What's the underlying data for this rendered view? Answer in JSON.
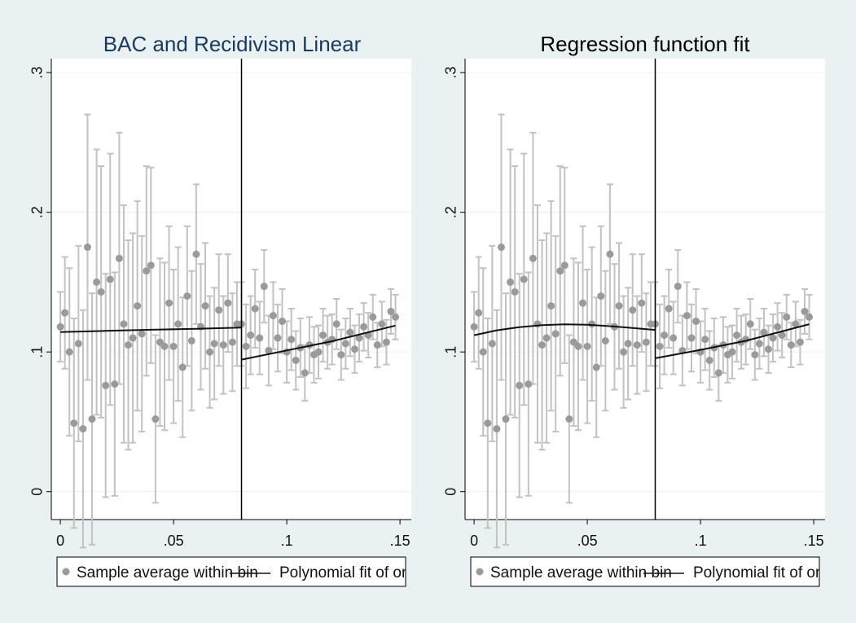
{
  "chart_data": [
    {
      "type": "scatter",
      "title": "BAC and Recidivism Linear",
      "title_color": "#1a3a5f",
      "xlabel": "",
      "ylabel": "",
      "xlim": [
        -0.004,
        0.155
      ],
      "ylim": [
        -0.02,
        0.31
      ],
      "x_ticks": [
        0,
        0.05,
        0.1,
        0.15
      ],
      "x_tick_labels": [
        "0",
        ".05",
        ".1",
        ".15"
      ],
      "y_ticks": [
        0,
        0.1,
        0.2,
        0.3
      ],
      "y_tick_labels": [
        "0",
        ".1",
        ".2",
        ".3"
      ],
      "grid": "horizontal",
      "cutoff": 0.08,
      "legend": {
        "placement": "bottom",
        "entries": [
          "Sample average within bin",
          "Polynomial fit of orde"
        ]
      },
      "fit_left": {
        "x": [
          0,
          0.02,
          0.04,
          0.06,
          0.08
        ],
        "y": [
          0.1143,
          0.1151,
          0.1159,
          0.1166,
          0.1174
        ]
      },
      "fit_right": {
        "x": [
          0.08,
          0.1,
          0.12,
          0.148
        ],
        "y": [
          0.0945,
          0.1011,
          0.1077,
          0.1189
        ]
      },
      "series": [
        {
          "x": [
            0.0,
            0.002,
            0.004,
            0.006,
            0.008,
            0.01,
            0.012,
            0.014,
            0.016,
            0.018,
            0.02,
            0.022,
            0.024,
            0.026,
            0.028,
            0.03,
            0.032,
            0.034,
            0.036,
            0.038,
            0.04,
            0.042,
            0.044,
            0.046,
            0.048,
            0.05,
            0.052,
            0.054,
            0.056,
            0.058,
            0.06,
            0.062,
            0.064,
            0.066,
            0.068,
            0.07,
            0.072,
            0.074,
            0.076,
            0.078,
            0.08,
            0.082,
            0.084,
            0.086,
            0.088,
            0.09,
            0.092,
            0.094,
            0.096,
            0.098,
            0.1,
            0.102,
            0.104,
            0.106,
            0.108,
            0.11,
            0.112,
            0.114,
            0.116,
            0.118,
            0.12,
            0.122,
            0.124,
            0.126,
            0.128,
            0.13,
            0.132,
            0.134,
            0.136,
            0.138,
            0.14,
            0.142,
            0.144,
            0.146,
            0.148
          ],
          "y": [
            0.118,
            0.128,
            0.1,
            0.049,
            0.106,
            0.045,
            0.175,
            0.052,
            0.15,
            0.143,
            0.076,
            0.152,
            0.077,
            0.167,
            0.12,
            0.105,
            0.11,
            0.133,
            0.113,
            0.158,
            0.162,
            0.052,
            0.107,
            0.104,
            0.135,
            0.104,
            0.12,
            0.089,
            0.14,
            0.108,
            0.17,
            0.118,
            0.133,
            0.1,
            0.106,
            0.13,
            0.105,
            0.135,
            0.107,
            0.12,
            0.12,
            0.104,
            0.112,
            0.131,
            0.11,
            0.147,
            0.101,
            0.126,
            0.11,
            0.122,
            0.1,
            0.109,
            0.094,
            0.103,
            0.085,
            0.105,
            0.098,
            0.1,
            0.112,
            0.107,
            0.109,
            0.12,
            0.098,
            0.106,
            0.114,
            0.102,
            0.11,
            0.118,
            0.112,
            0.125,
            0.105,
            0.12,
            0.107,
            0.129,
            0.125
          ],
          "ci": [
            0.025,
            0.04,
            0.06,
            0.075,
            0.07,
            0.085,
            0.095,
            0.09,
            0.095,
            0.09,
            0.08,
            0.09,
            0.08,
            0.09,
            0.085,
            0.075,
            0.075,
            0.075,
            0.07,
            0.075,
            0.07,
            0.06,
            0.06,
            0.06,
            0.055,
            0.055,
            0.055,
            0.05,
            0.05,
            0.05,
            0.05,
            0.045,
            0.045,
            0.04,
            0.04,
            0.04,
            0.035,
            0.035,
            0.035,
            0.03,
            0.03,
            0.03,
            0.028,
            0.028,
            0.026,
            0.026,
            0.025,
            0.024,
            0.024,
            0.023,
            0.022,
            0.022,
            0.021,
            0.021,
            0.02,
            0.02,
            0.02,
            0.019,
            0.019,
            0.019,
            0.018,
            0.018,
            0.018,
            0.018,
            0.017,
            0.017,
            0.017,
            0.017,
            0.016,
            0.016,
            0.016,
            0.016,
            0.016,
            0.016,
            0.016
          ]
        }
      ]
    },
    {
      "type": "scatter",
      "title": "Regression function fit",
      "title_color": "#000000",
      "xlabel": "",
      "ylabel": "",
      "xlim": [
        -0.004,
        0.155
      ],
      "ylim": [
        -0.02,
        0.31
      ],
      "x_ticks": [
        0,
        0.05,
        0.1,
        0.15
      ],
      "x_tick_labels": [
        "0",
        ".05",
        ".1",
        ".15"
      ],
      "y_ticks": [
        0,
        0.1,
        0.2,
        0.3
      ],
      "y_tick_labels": [
        "0",
        ".1",
        ".2",
        ".3"
      ],
      "grid": "horizontal",
      "cutoff": 0.08,
      "legend": {
        "placement": "bottom",
        "entries": [
          "Sample average within bin",
          "Polynomial fit of order"
        ]
      },
      "fit_left": {
        "x": [
          0,
          0.01,
          0.02,
          0.03,
          0.04,
          0.05,
          0.06,
          0.07,
          0.08
        ],
        "y": [
          0.112,
          0.1155,
          0.1178,
          0.1192,
          0.1198,
          0.1195,
          0.1185,
          0.1172,
          0.1158
        ]
      },
      "fit_right": {
        "x": [
          0.08,
          0.1,
          0.12,
          0.148
        ],
        "y": [
          0.0955,
          0.1015,
          0.108,
          0.1199
        ]
      },
      "series": [
        {
          "x": [
            0.0,
            0.002,
            0.004,
            0.006,
            0.008,
            0.01,
            0.012,
            0.014,
            0.016,
            0.018,
            0.02,
            0.022,
            0.024,
            0.026,
            0.028,
            0.03,
            0.032,
            0.034,
            0.036,
            0.038,
            0.04,
            0.042,
            0.044,
            0.046,
            0.048,
            0.05,
            0.052,
            0.054,
            0.056,
            0.058,
            0.06,
            0.062,
            0.064,
            0.066,
            0.068,
            0.07,
            0.072,
            0.074,
            0.076,
            0.078,
            0.08,
            0.082,
            0.084,
            0.086,
            0.088,
            0.09,
            0.092,
            0.094,
            0.096,
            0.098,
            0.1,
            0.102,
            0.104,
            0.106,
            0.108,
            0.11,
            0.112,
            0.114,
            0.116,
            0.118,
            0.12,
            0.122,
            0.124,
            0.126,
            0.128,
            0.13,
            0.132,
            0.134,
            0.136,
            0.138,
            0.14,
            0.142,
            0.144,
            0.146,
            0.148
          ],
          "y": [
            0.118,
            0.128,
            0.1,
            0.049,
            0.106,
            0.045,
            0.175,
            0.052,
            0.15,
            0.143,
            0.076,
            0.152,
            0.077,
            0.167,
            0.12,
            0.105,
            0.11,
            0.133,
            0.113,
            0.158,
            0.162,
            0.052,
            0.107,
            0.104,
            0.135,
            0.104,
            0.12,
            0.089,
            0.14,
            0.108,
            0.17,
            0.118,
            0.133,
            0.1,
            0.106,
            0.13,
            0.105,
            0.135,
            0.107,
            0.12,
            0.12,
            0.104,
            0.112,
            0.131,
            0.11,
            0.147,
            0.101,
            0.126,
            0.11,
            0.122,
            0.1,
            0.109,
            0.094,
            0.103,
            0.085,
            0.105,
            0.098,
            0.1,
            0.112,
            0.107,
            0.109,
            0.12,
            0.098,
            0.106,
            0.114,
            0.102,
            0.11,
            0.118,
            0.112,
            0.125,
            0.105,
            0.12,
            0.107,
            0.129,
            0.125
          ],
          "ci": [
            0.025,
            0.04,
            0.06,
            0.075,
            0.07,
            0.085,
            0.095,
            0.09,
            0.095,
            0.09,
            0.08,
            0.09,
            0.08,
            0.09,
            0.085,
            0.075,
            0.075,
            0.075,
            0.07,
            0.075,
            0.07,
            0.06,
            0.06,
            0.06,
            0.055,
            0.055,
            0.055,
            0.05,
            0.05,
            0.05,
            0.05,
            0.045,
            0.045,
            0.04,
            0.04,
            0.04,
            0.035,
            0.035,
            0.035,
            0.03,
            0.03,
            0.03,
            0.028,
            0.028,
            0.026,
            0.026,
            0.025,
            0.024,
            0.024,
            0.023,
            0.022,
            0.022,
            0.021,
            0.021,
            0.02,
            0.02,
            0.02,
            0.019,
            0.019,
            0.019,
            0.018,
            0.018,
            0.018,
            0.018,
            0.017,
            0.017,
            0.017,
            0.017,
            0.016,
            0.016,
            0.016,
            0.016,
            0.016,
            0.016,
            0.016
          ]
        }
      ]
    }
  ],
  "colors": {
    "marker": "#9a9a9a",
    "ci": "#c2c2c2",
    "fit": "#111111",
    "grid": "#eaf1f3",
    "plot_bg": "#ffffff",
    "page_bg": "#eaf1f3"
  }
}
